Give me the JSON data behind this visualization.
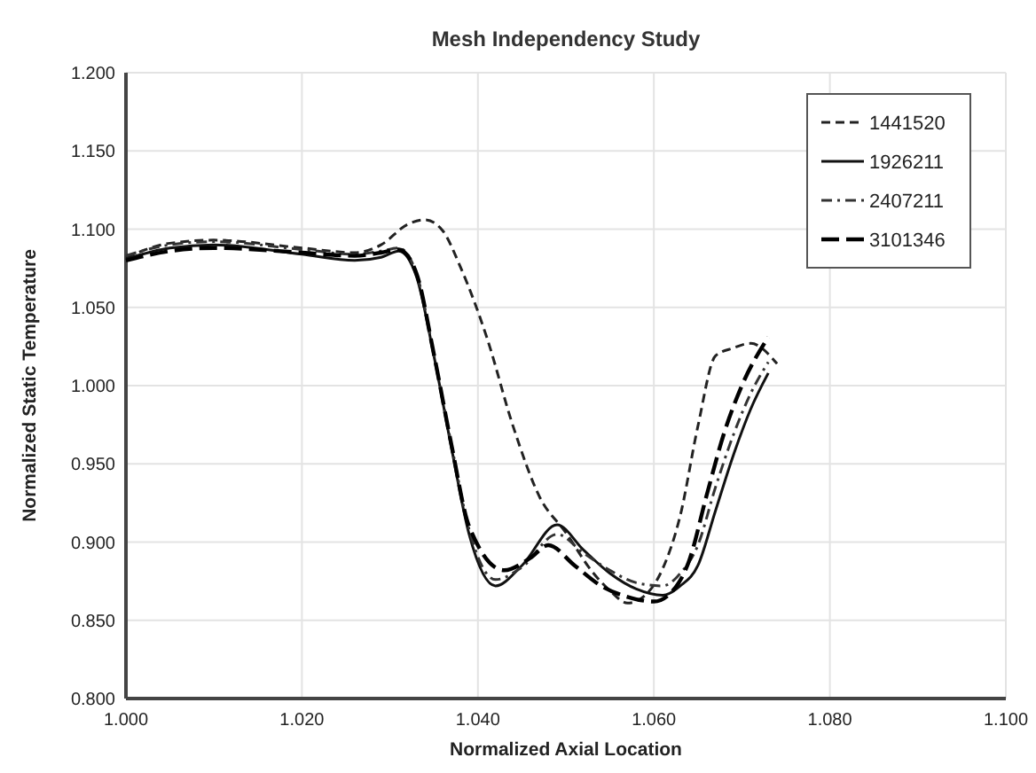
{
  "chart_data": {
    "type": "line",
    "title": "Mesh Independency Study",
    "xlabel": "Normalized Axial Location",
    "ylabel": "Normalized Static Temperature",
    "xlim": [
      1.0,
      1.1
    ],
    "ylim": [
      0.8,
      1.2
    ],
    "xticks": [
      {
        "value": 1.0,
        "label": "1.000"
      },
      {
        "value": 1.02,
        "label": "1.020"
      },
      {
        "value": 1.04,
        "label": "1.040"
      },
      {
        "value": 1.06,
        "label": "1.060"
      },
      {
        "value": 1.08,
        "label": "1.080"
      },
      {
        "value": 1.1,
        "label": "1.100"
      }
    ],
    "yticks": [
      {
        "value": 0.8,
        "label": "0.800"
      },
      {
        "value": 0.85,
        "label": "0.850"
      },
      {
        "value": 0.9,
        "label": "0.900"
      },
      {
        "value": 0.95,
        "label": "0.950"
      },
      {
        "value": 1.0,
        "label": "1.000"
      },
      {
        "value": 1.05,
        "label": "1.050"
      },
      {
        "value": 1.1,
        "label": "1.100"
      },
      {
        "value": 1.15,
        "label": "1.150"
      },
      {
        "value": 1.2,
        "label": "1.200"
      }
    ],
    "grid": true,
    "legend": "top right",
    "series": [
      {
        "name": "1441520",
        "color": "#222222",
        "line_style": "dashed",
        "x": [
          1.0,
          1.005,
          1.01,
          1.02,
          1.026,
          1.029,
          1.032,
          1.034,
          1.036,
          1.038,
          1.041,
          1.044,
          1.047,
          1.05,
          1.053,
          1.055,
          1.057,
          1.059,
          1.061,
          1.063,
          1.065,
          1.067,
          1.069,
          1.071,
          1.074
        ],
        "values": [
          1.082,
          1.091,
          1.093,
          1.088,
          1.085,
          1.09,
          1.103,
          1.106,
          1.099,
          1.076,
          1.031,
          0.974,
          0.929,
          0.906,
          0.881,
          0.869,
          0.861,
          0.866,
          0.883,
          0.917,
          0.974,
          1.019,
          1.024,
          1.027,
          1.014
        ]
      },
      {
        "name": "1926211",
        "color": "#111111",
        "line_style": "solid",
        "x": [
          1.0,
          1.005,
          1.01,
          1.02,
          1.026,
          1.029,
          1.031,
          1.033,
          1.035,
          1.037,
          1.039,
          1.042,
          1.045,
          1.049,
          1.052,
          1.055,
          1.058,
          1.061,
          1.063,
          1.065,
          1.067,
          1.069,
          1.071,
          1.073
        ],
        "values": [
          1.081,
          1.088,
          1.09,
          1.084,
          1.08,
          1.082,
          1.086,
          1.07,
          1.019,
          0.96,
          0.905,
          0.872,
          0.885,
          0.911,
          0.895,
          0.88,
          0.87,
          0.866,
          0.872,
          0.885,
          0.92,
          0.955,
          0.985,
          1.008
        ]
      },
      {
        "name": "2407211",
        "color": "#333333",
        "line_style": "dashdot",
        "x": [
          1.0,
          1.005,
          1.01,
          1.02,
          1.026,
          1.029,
          1.031,
          1.033,
          1.035,
          1.037,
          1.039,
          1.042,
          1.045,
          1.049,
          1.052,
          1.055,
          1.058,
          1.061,
          1.063,
          1.065,
          1.067,
          1.069,
          1.071,
          1.073
        ],
        "values": [
          1.083,
          1.09,
          1.092,
          1.087,
          1.084,
          1.086,
          1.088,
          1.072,
          1.02,
          0.962,
          0.908,
          0.876,
          0.884,
          0.905,
          0.893,
          0.882,
          0.874,
          0.872,
          0.88,
          0.898,
          0.935,
          0.968,
          0.995,
          1.015
        ]
      },
      {
        "name": "3101346",
        "color": "#000000",
        "line_style": "longdash",
        "x": [
          1.0,
          1.005,
          1.01,
          1.02,
          1.026,
          1.029,
          1.031,
          1.033,
          1.035,
          1.037,
          1.039,
          1.043,
          1.046,
          1.048,
          1.051,
          1.054,
          1.057,
          1.06,
          1.062,
          1.064,
          1.066,
          1.068,
          1.07,
          1.073
        ],
        "values": [
          1.08,
          1.086,
          1.088,
          1.085,
          1.083,
          1.085,
          1.087,
          1.072,
          1.02,
          0.962,
          0.91,
          0.882,
          0.89,
          0.898,
          0.885,
          0.872,
          0.865,
          0.862,
          0.868,
          0.888,
          0.93,
          0.97,
          1.0,
          1.031
        ]
      }
    ]
  }
}
